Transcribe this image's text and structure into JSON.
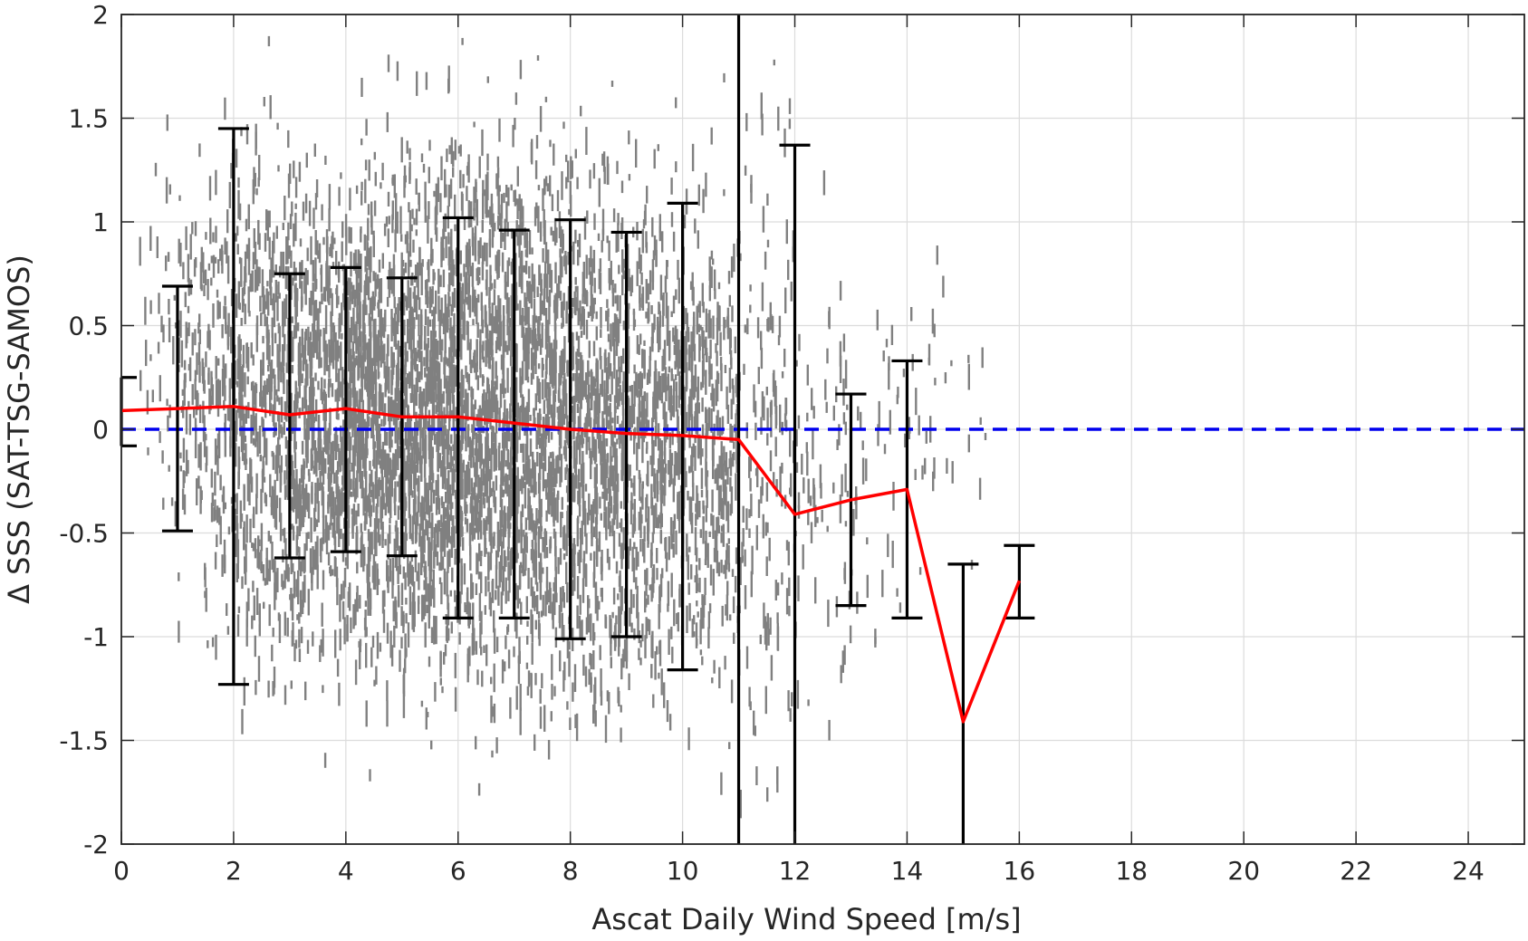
{
  "chart_data": {
    "type": "scatter",
    "xlabel": "Ascat Daily Wind Speed [m/s]",
    "ylabel": "Δ SSS (SAT-TSG-SAMOS)",
    "xlim": [
      0,
      25
    ],
    "ylim": [
      -2,
      2
    ],
    "grid": true,
    "x_ticks": [
      0,
      2,
      4,
      6,
      8,
      10,
      12,
      14,
      16,
      18,
      20,
      22,
      24
    ],
    "y_ticks": [
      2,
      1.5,
      1,
      0.5,
      0,
      -0.5,
      -1,
      -1.5,
      -2
    ],
    "x_tick_labels": [
      "0",
      "2",
      "4",
      "6",
      "8",
      "10",
      "12",
      "14",
      "16",
      "18",
      "20",
      "22",
      "24"
    ],
    "y_tick_labels": [
      "2",
      "1.5",
      "1",
      "0.5",
      "0",
      "-0.5",
      "-1",
      "-1.5",
      "-2"
    ],
    "scatter_color": "#808080",
    "scatter_description_bins": [
      {
        "x_range": [
          0.3,
          1.9
        ],
        "y_range": [
          -1.3,
          1.3
        ]
      },
      {
        "x_range": [
          1.5,
          5.0
        ],
        "y_range": [
          -2.0,
          2.0
        ]
      },
      {
        "x_range": [
          5.0,
          8.0
        ],
        "y_range": [
          -2.0,
          2.0
        ]
      },
      {
        "x_range": [
          8.0,
          11.0
        ],
        "y_range": [
          -1.7,
          1.7
        ]
      },
      {
        "x_range": [
          11.0,
          12.5
        ],
        "y_range": [
          -1.9,
          1.0
        ]
      },
      {
        "x_range": [
          12.5,
          14.5
        ],
        "y_range": [
          -0.9,
          0.7
        ]
      }
    ],
    "mean_line": {
      "color": "#ff0000",
      "x": [
        0,
        1,
        2,
        3,
        4,
        5,
        6,
        7,
        8,
        9,
        10,
        11,
        12,
        13,
        14,
        15,
        16
      ],
      "y": [
        0.09,
        0.1,
        0.11,
        0.07,
        0.1,
        0.06,
        0.06,
        0.03,
        0.0,
        -0.02,
        -0.03,
        -0.05,
        -0.41,
        -0.34,
        -0.29,
        -1.41,
        -0.73
      ]
    },
    "error_bars": {
      "color": "#000000",
      "x": [
        0,
        1,
        2,
        3,
        4,
        5,
        6,
        7,
        8,
        9,
        10,
        11,
        12,
        13,
        14,
        15,
        16
      ],
      "upper": [
        0.25,
        0.69,
        1.45,
        0.75,
        0.78,
        0.73,
        1.02,
        0.96,
        1.01,
        0.95,
        1.09,
        2.0,
        1.37,
        0.17,
        0.33,
        -0.65,
        -0.56
      ],
      "lower": [
        -0.08,
        -0.49,
        -1.23,
        -0.62,
        -0.59,
        -0.61,
        -0.91,
        -0.91,
        -1.01,
        -1.0,
        -1.16,
        -2.0,
        -2.0,
        -0.85,
        -0.91,
        -2.0,
        -0.91
      ],
      "caps": [
        true,
        true,
        true,
        true,
        true,
        true,
        true,
        true,
        true,
        true,
        true,
        false,
        true,
        true,
        true,
        true,
        true
      ]
    },
    "reference_line": {
      "y": 0,
      "color": "#0000ee",
      "style": "dashed"
    }
  }
}
